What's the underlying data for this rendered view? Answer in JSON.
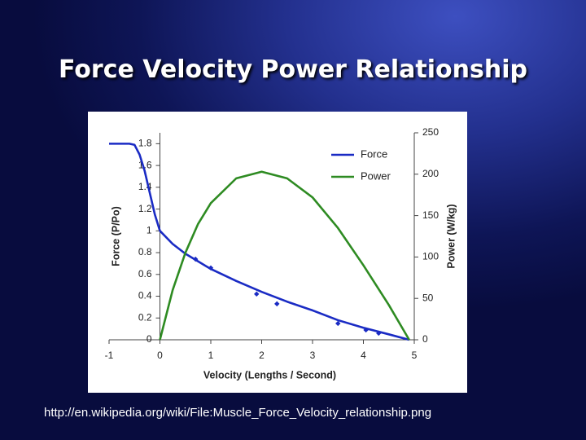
{
  "slide": {
    "title": "Force Velocity Power Relationship",
    "caption": "http://en.wikipedia.org/wiki/File:Muscle_Force_Velocity_relationship.png"
  },
  "chart_data": {
    "type": "line",
    "x_label": "Velocity (Lengths / Second)",
    "y_label": "Force (P/Po)",
    "y2_label": "Power (W/kg)",
    "xlim": [
      -1,
      5
    ],
    "xticks": [
      -1,
      0,
      1,
      2,
      3,
      4,
      5
    ],
    "ylim": [
      0,
      1.9
    ],
    "yticks": [
      0,
      0.2,
      0.4,
      0.6,
      0.8,
      1,
      1.2,
      1.4,
      1.6,
      1.8
    ],
    "y2lim": [
      0,
      250
    ],
    "y2ticks": [
      0,
      50,
      100,
      150,
      200,
      250
    ],
    "grid": false,
    "legend": "upper right",
    "series": [
      {
        "name": "Force",
        "color": "#1a2bc4",
        "x": [
          -1,
          -0.6,
          -0.5,
          -0.4,
          -0.3,
          -0.2,
          -0.1,
          0,
          0.25,
          0.5,
          0.75,
          1,
          1.5,
          2,
          2.5,
          3,
          3.5,
          4,
          4.5,
          4.9
        ],
        "values": [
          1.8,
          1.8,
          1.79,
          1.7,
          1.55,
          1.35,
          1.15,
          1.0,
          0.88,
          0.79,
          0.72,
          0.65,
          0.54,
          0.44,
          0.35,
          0.27,
          0.18,
          0.11,
          0.05,
          0
        ]
      },
      {
        "name": "Power",
        "color": "#2e8b22",
        "axis": "y2",
        "x": [
          0,
          0.25,
          0.5,
          0.75,
          1,
          1.5,
          2,
          2.5,
          3,
          3.5,
          4,
          4.5,
          4.9
        ],
        "values": [
          0,
          60,
          105,
          140,
          165,
          195,
          203,
          195,
          172,
          135,
          90,
          42,
          0
        ]
      }
    ],
    "points": {
      "color": "#1a2bc4",
      "x": [
        0.7,
        1,
        1.9,
        2.3,
        3.5,
        4.05,
        4.3
      ],
      "values": [
        0.74,
        0.66,
        0.42,
        0.33,
        0.15,
        0.09,
        0.06
      ]
    }
  }
}
